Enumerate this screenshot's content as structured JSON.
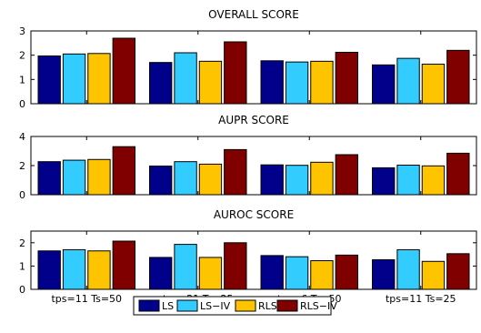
{
  "legend": {
    "placement": "bottom-center",
    "orientation": "horizontal",
    "entries": [
      {
        "label": "LS",
        "color": "#00008B"
      },
      {
        "label": "LS−IV",
        "color": "#33CCFF"
      },
      {
        "label": "RLS",
        "color": "#FFC400"
      },
      {
        "label": "RLS−IV",
        "color": "#800000"
      }
    ]
  },
  "chart_data": [
    {
      "type": "bar",
      "title": "OVERALL SCORE",
      "categories": [
        "tps=11 Ts=50",
        "tps=21 Ts=25",
        "tps=6 Ts=50",
        "tps=11 Ts=25"
      ],
      "show_xticklabels": false,
      "ylim": [
        0,
        3
      ],
      "yticks": [
        0,
        1,
        2,
        3
      ],
      "grid": false,
      "series": [
        {
          "name": "LS",
          "values": [
            1.97,
            1.7,
            1.77,
            1.6
          ]
        },
        {
          "name": "LS−IV",
          "values": [
            2.05,
            2.1,
            1.72,
            1.87
          ]
        },
        {
          "name": "RLS",
          "values": [
            2.07,
            1.75,
            1.75,
            1.63
          ]
        },
        {
          "name": "RLS−IV",
          "values": [
            2.7,
            2.55,
            2.12,
            2.2
          ]
        }
      ]
    },
    {
      "type": "bar",
      "title": "AUPR SCORE",
      "categories": [
        "tps=11 Ts=50",
        "tps=21 Ts=25",
        "tps=6 Ts=50",
        "tps=11 Ts=25"
      ],
      "show_xticklabels": false,
      "ylim": [
        0,
        4
      ],
      "yticks": [
        0,
        2,
        4
      ],
      "grid": false,
      "series": [
        {
          "name": "LS",
          "values": [
            2.27,
            1.97,
            2.05,
            1.85
          ]
        },
        {
          "name": "LS−IV",
          "values": [
            2.37,
            2.27,
            2.02,
            2.03
          ]
        },
        {
          "name": "RLS",
          "values": [
            2.42,
            2.1,
            2.23,
            1.98
          ]
        },
        {
          "name": "RLS−IV",
          "values": [
            3.3,
            3.1,
            2.75,
            2.85
          ]
        }
      ]
    },
    {
      "type": "bar",
      "title": "AUROC SCORE",
      "categories": [
        "tps=11 Ts=50",
        "tps=21 Ts=25",
        "tps=6 Ts=50",
        "tps=11 Ts=25"
      ],
      "show_xticklabels": true,
      "ylim": [
        0,
        2.5
      ],
      "yticks": [
        0,
        1,
        2
      ],
      "grid": false,
      "series": [
        {
          "name": "LS",
          "values": [
            1.65,
            1.37,
            1.45,
            1.27
          ]
        },
        {
          "name": "LS−IV",
          "values": [
            1.7,
            1.93,
            1.4,
            1.7
          ]
        },
        {
          "name": "RLS",
          "values": [
            1.65,
            1.37,
            1.23,
            1.2
          ]
        },
        {
          "name": "RLS−IV",
          "values": [
            2.07,
            2.0,
            1.47,
            1.53
          ]
        }
      ]
    }
  ]
}
